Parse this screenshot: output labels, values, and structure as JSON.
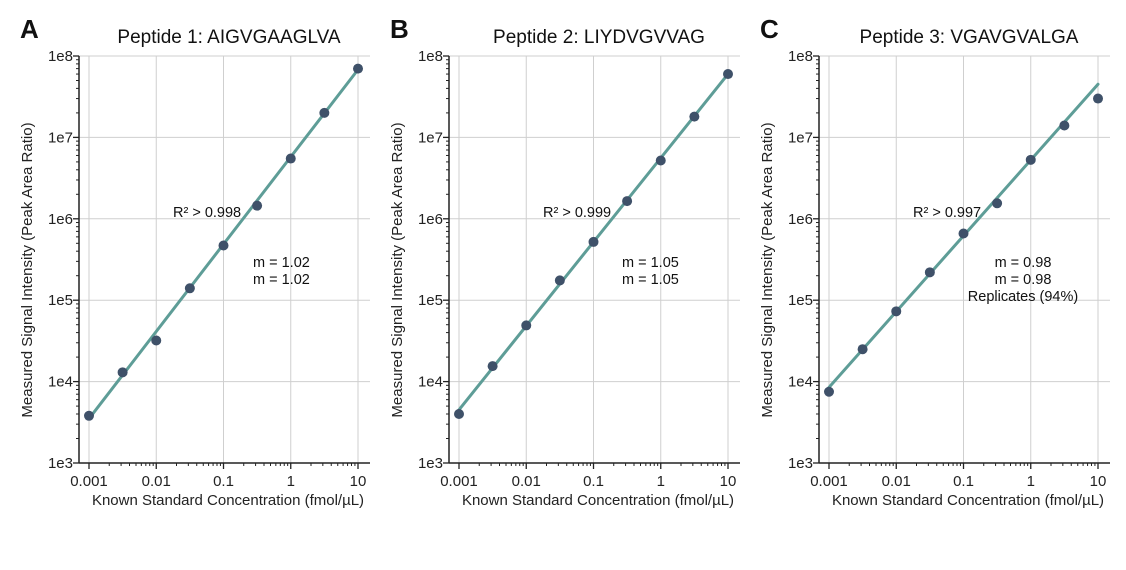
{
  "chart_data": [
    {
      "type": "scatter",
      "panel_label": "A",
      "title": "Peptide 1: AIGVGAAGLVA",
      "xlabel": "Known Standard Concentration (fmol/µL)",
      "ylabel": "Measured Signal Intensity (Peak Area Ratio)",
      "x_scale": "log",
      "y_scale": "log",
      "xlim": [
        0.001,
        10
      ],
      "ylim": [
        1000,
        100000000
      ],
      "x_ticks": [
        "0.001",
        "0.01",
        "0.1",
        "1",
        "10"
      ],
      "y_ticks": [
        "1e3",
        "1e4",
        "1e5",
        "1e6",
        "1e7",
        "1e8"
      ],
      "grid": true,
      "x": [
        0.001,
        0.00316,
        0.01,
        0.0316,
        0.1,
        0.316,
        1,
        3.16,
        10
      ],
      "y": [
        3800,
        13000,
        32000,
        140000,
        470000,
        1450000,
        5500000,
        20000000,
        70000000
      ],
      "fit_line": {
        "x": [
          0.001,
          10
        ],
        "y": [
          3500,
          68000000
        ]
      },
      "annotations": [
        "R² > 0.998",
        "m = 1.02",
        "m = 1.02"
      ]
    },
    {
      "type": "scatter",
      "panel_label": "B",
      "title": "Peptide 2: LIYDVGVVAG",
      "xlabel": "Known Standard Concentration (fmol/µL)",
      "ylabel": "Measured Signal Intensity (Peak Area Ratio)",
      "x_scale": "log",
      "y_scale": "log",
      "xlim": [
        0.001,
        10
      ],
      "ylim": [
        1000,
        100000000
      ],
      "x_ticks": [
        "0.001",
        "0.01",
        "0.1",
        "1",
        "10"
      ],
      "y_ticks": [
        "1e3",
        "1e4",
        "1e5",
        "1e6",
        "1e7",
        "1e8"
      ],
      "grid": true,
      "x": [
        0.001,
        0.00316,
        0.01,
        0.0316,
        0.1,
        0.316,
        1,
        3.16,
        10
      ],
      "y": [
        4000,
        15500,
        49000,
        175000,
        520000,
        1650000,
        5200000,
        18000000,
        60000000
      ],
      "fit_line": {
        "x": [
          0.001,
          10
        ],
        "y": [
          4500,
          60000000
        ]
      },
      "annotations": [
        "R² > 0.999",
        "m = 1.05",
        "m = 1.05"
      ]
    },
    {
      "type": "scatter",
      "panel_label": "C",
      "title": "Peptide 3: VGAVGVALGA",
      "xlabel": "Known Standard Concentration (fmol/µL)",
      "ylabel": "Measured Signal Intensity (Peak Area Ratio)",
      "x_scale": "log",
      "y_scale": "log",
      "xlim": [
        0.001,
        10
      ],
      "ylim": [
        1000,
        100000000
      ],
      "x_ticks": [
        "0.001",
        "0.01",
        "0.1",
        "1",
        "10"
      ],
      "y_ticks": [
        "1e3",
        "1e4",
        "1e5",
        "1e6",
        "1e7",
        "1e8"
      ],
      "grid": true,
      "x": [
        0.001,
        0.00316,
        0.01,
        0.0316,
        0.1,
        0.316,
        1,
        3.16,
        10
      ],
      "y": [
        7500,
        25000,
        73000,
        220000,
        660000,
        1550000,
        5300000,
        14000000,
        30000000
      ],
      "fit_line": {
        "x": [
          0.001,
          10
        ],
        "y": [
          8500,
          45000000
        ]
      },
      "annotations": [
        "R² > 0.997",
        "m = 0.98",
        "m = 0.98",
        "Replicates (94%)"
      ]
    }
  ],
  "colors": {
    "fit_line": "#5e9d97",
    "points": "#3f5169",
    "grid": "#cfcfcf",
    "axis": "#222222"
  }
}
